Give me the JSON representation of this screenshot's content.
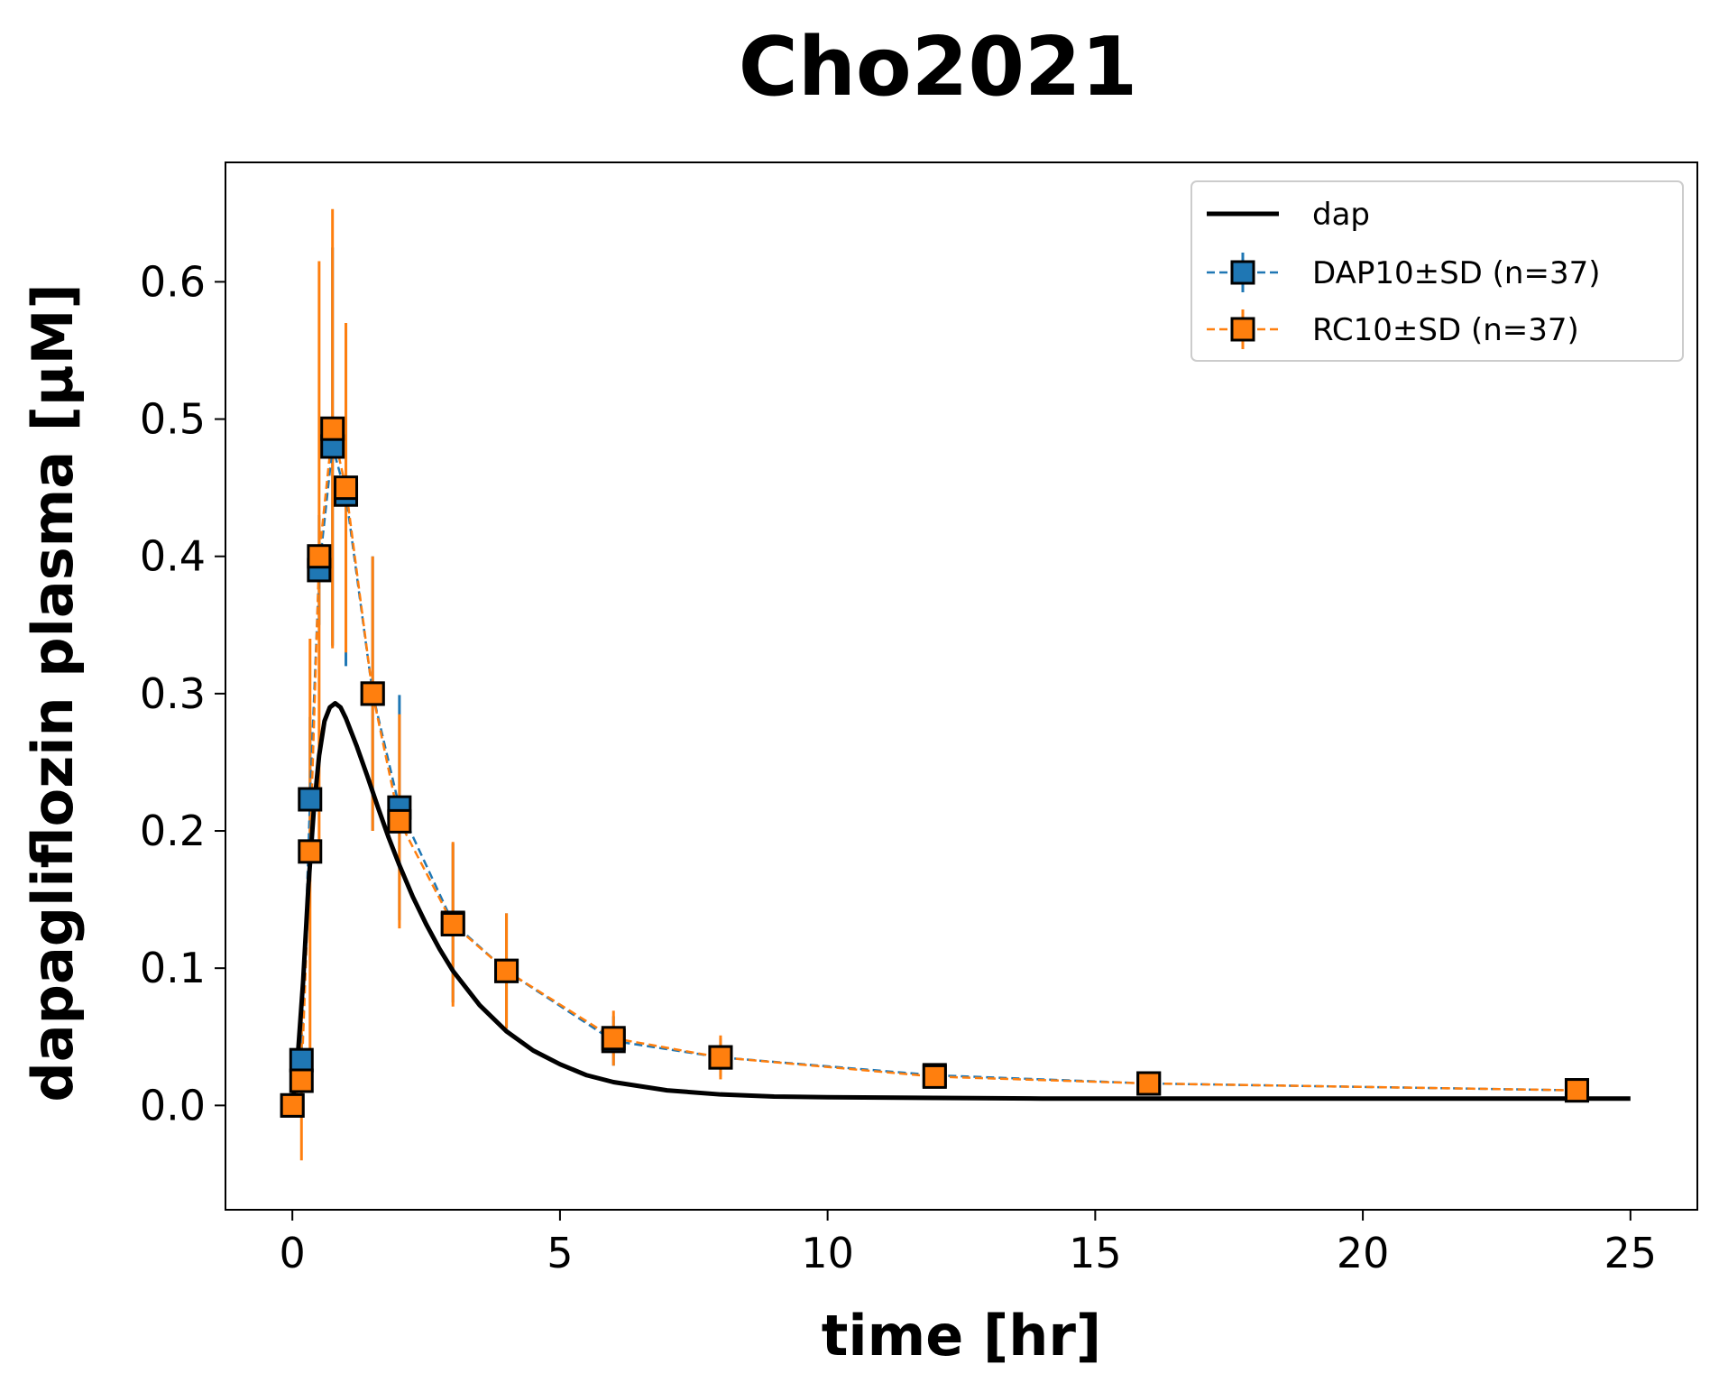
{
  "chart_data": {
    "type": "line",
    "title": "Cho2021",
    "xlabel": "time [hr]",
    "ylabel": "dapagliflozin plasma [µM]",
    "xlim": [
      -1.25,
      26.25
    ],
    "ylim": [
      -0.076,
      0.687
    ],
    "x_ticks": [
      0,
      5,
      10,
      15,
      20,
      25
    ],
    "y_ticks": [
      0.0,
      0.1,
      0.2,
      0.3,
      0.4,
      0.5,
      0.6
    ],
    "x_tick_labels": [
      "0",
      "5",
      "10",
      "15",
      "20",
      "25"
    ],
    "y_tick_labels": [
      "0.0",
      "0.1",
      "0.2",
      "0.3",
      "0.4",
      "0.5",
      "0.6"
    ],
    "grid": false,
    "legend_position": "top-right",
    "legend": [
      "dap",
      "DAP10±SD (n=37)",
      "RC10±SD (n=37)"
    ],
    "series": [
      {
        "name": "dap",
        "kind": "model-curve",
        "color": "#000000",
        "x": [
          0.0,
          0.1,
          0.2,
          0.3,
          0.4,
          0.5,
          0.6,
          0.7,
          0.8,
          0.9,
          1.0,
          1.2,
          1.4,
          1.6,
          1.8,
          2.0,
          2.25,
          2.5,
          2.75,
          3.0,
          3.5,
          4.0,
          4.5,
          5.0,
          5.5,
          6.0,
          7.0,
          8.0,
          9.0,
          10.0,
          12.0,
          14.0,
          16.0,
          18.0,
          20.0,
          22.0,
          24.0,
          25.0
        ],
        "y": [
          0.0,
          0.035,
          0.09,
          0.16,
          0.215,
          0.255,
          0.28,
          0.29,
          0.293,
          0.29,
          0.282,
          0.262,
          0.24,
          0.217,
          0.195,
          0.175,
          0.152,
          0.132,
          0.114,
          0.098,
          0.073,
          0.054,
          0.04,
          0.03,
          0.022,
          0.017,
          0.011,
          0.008,
          0.0065,
          0.006,
          0.0055,
          0.005,
          0.005,
          0.005,
          0.005,
          0.005,
          0.005,
          0.005
        ]
      },
      {
        "name": "DAP10±SD (n=37)",
        "kind": "errorbar",
        "color": "#1f77b4",
        "x": [
          0.0,
          0.17,
          0.33,
          0.5,
          0.75,
          1.0,
          1.5,
          2.0,
          3.0,
          4.0,
          6.0,
          8.0,
          12.0,
          16.0,
          24.0
        ],
        "y": [
          0.0,
          0.033,
          0.223,
          0.39,
          0.48,
          0.445,
          0.3,
          0.217,
          0.133,
          0.098,
          0.047,
          0.035,
          0.022,
          0.016,
          0.011
        ],
        "sd": [
          0.0,
          0.02,
          0.06,
          0.04,
          0.145,
          0.125,
          0.1,
          0.082,
          0.058,
          0.042,
          0.018,
          0.014,
          0.006,
          0.005,
          0.004
        ]
      },
      {
        "name": "RC10±SD (n=37)",
        "kind": "errorbar",
        "color": "#ff7f0e",
        "x": [
          0.0,
          0.17,
          0.33,
          0.5,
          0.75,
          1.0,
          1.5,
          2.0,
          3.0,
          4.0,
          6.0,
          8.0,
          12.0,
          16.0,
          24.0
        ],
        "y": [
          0.0,
          0.018,
          0.185,
          0.4,
          0.493,
          0.45,
          0.3,
          0.207,
          0.132,
          0.098,
          0.049,
          0.035,
          0.021,
          0.016,
          0.011
        ],
        "sd": [
          0.0,
          0.058,
          0.155,
          0.215,
          0.16,
          0.12,
          0.1,
          0.078,
          0.06,
          0.042,
          0.02,
          0.016,
          0.007,
          0.005,
          0.004
        ]
      }
    ]
  }
}
